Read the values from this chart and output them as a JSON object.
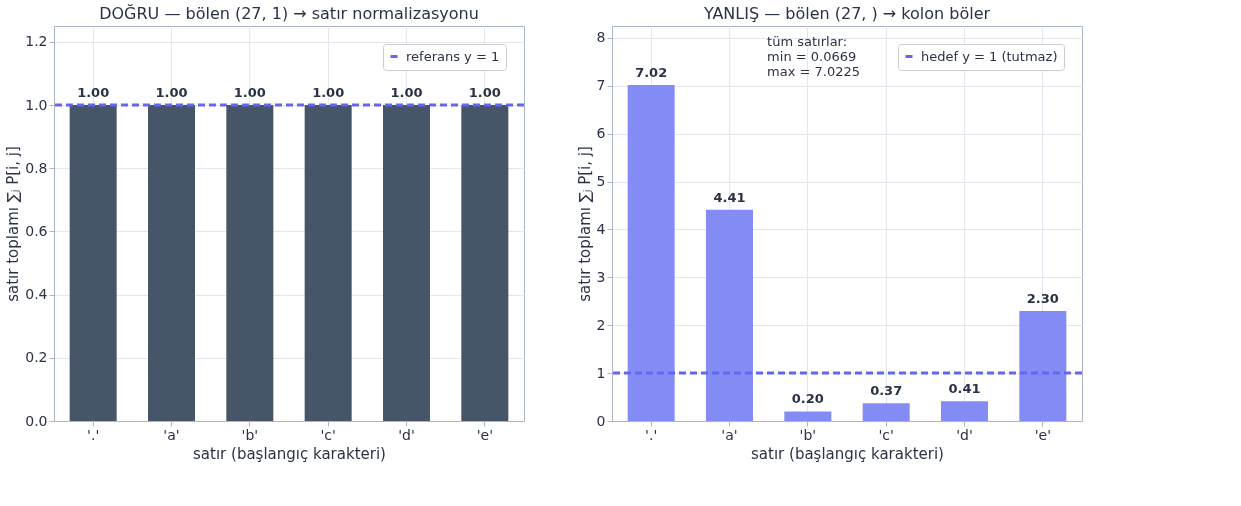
{
  "chart_data": [
    {
      "type": "bar",
      "title": "DOĞRU — bölen (27, 1) → satır normalizasyonu",
      "xlabel": "satır (başlangıç karakteri)",
      "ylabel": "satır toplamı ∑ⱼ P[i, j]",
      "categories": [
        "'.'",
        "'a'",
        "'b'",
        "'c'",
        "'d'",
        "'e'"
      ],
      "values": [
        1.0,
        1.0,
        1.0,
        1.0,
        1.0,
        1.0
      ],
      "color": "#465568",
      "value_labels": [
        "1.00",
        "1.00",
        "1.00",
        "1.00",
        "1.00",
        "1.00"
      ],
      "ylim": [
        0,
        1.25
      ],
      "yticks": [
        {
          "value": 0,
          "label": "0.0"
        },
        0.2,
        0.4,
        0.6,
        0.8,
        {
          "value": 1,
          "label": "1.0"
        },
        1.2
      ],
      "ref_lines": [
        {
          "axis": "y",
          "value": 1,
          "label": "referans y = 1",
          "color": "#6366f1",
          "line_style": "dashed"
        }
      ],
      "grid": true,
      "legend": "top right"
    },
    {
      "type": "bar",
      "title": "YANLIŞ — bölen (27, ) → kolon böler",
      "xlabel": "satır (başlangıç karakteri)",
      "ylabel": "satır toplamı ∑ⱼ P[i, j]",
      "categories": [
        "'.'",
        "'a'",
        "'b'",
        "'c'",
        "'d'",
        "'e'"
      ],
      "values": [
        7.02,
        4.41,
        0.2,
        0.37,
        0.41,
        2.3
      ],
      "color": "#838cf5",
      "value_labels": [
        "7.02",
        "4.41",
        "0.20",
        "0.37",
        "0.41",
        "2.30"
      ],
      "ylim": [
        0,
        8.25
      ],
      "yticks": [
        0,
        1,
        2,
        3,
        4,
        5,
        6,
        7,
        8
      ],
      "ref_lines": [
        {
          "axis": "y",
          "value": 1,
          "label": "hedef y = 1 (tutmaz)",
          "color": "#6366f1",
          "line_style": "dashed"
        }
      ],
      "annotations": [
        "tüm satırlar:\nmin  = 0.0669\nmax = 7.0225"
      ],
      "grid": true,
      "legend": "top right"
    }
  ]
}
